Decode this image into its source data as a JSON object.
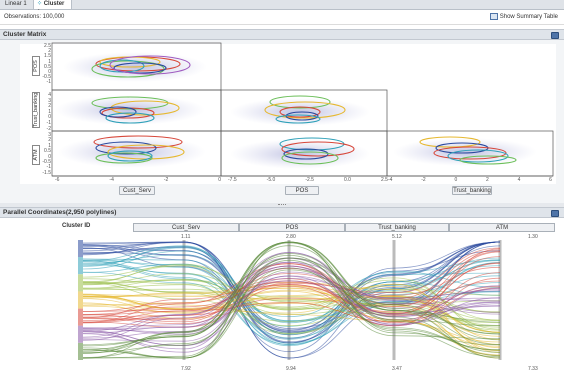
{
  "tabs": [
    {
      "label": "Linear 1",
      "icon": "chart-icon"
    },
    {
      "label": "Cluster 1",
      "icon": "cluster-icon"
    }
  ],
  "observations_text": "Observations: 100,000",
  "summary_table_label": "Show Summary Table",
  "cluster_matrix": {
    "title": "Cluster Matrix",
    "row_vars": [
      "POS",
      "Trust_banking",
      "ATM"
    ],
    "col_vars": [
      "Cust_Serv",
      "POS",
      "Trust_banking"
    ],
    "y_ticks_pos": [
      "2.5",
      "2",
      "1.5",
      "1",
      "0.5",
      "0",
      "-0.5",
      "-1",
      "-1.5"
    ],
    "y_ticks_trust": [
      "4",
      "3",
      "2",
      "1",
      "0",
      "-1",
      "-2"
    ],
    "y_ticks_atm": [
      "3",
      "2",
      "1",
      "0.5",
      "0",
      "-0.5",
      "-1",
      "-1.5"
    ],
    "x_ticks_cust": [
      "-6",
      "-4",
      "-2",
      "0"
    ],
    "x_ticks_pos": [
      "-7.5",
      "-5.0",
      "-2.5",
      "0.0",
      "2.5"
    ],
    "x_ticks_trust": [
      "-4",
      "-2",
      "0",
      "2",
      "4",
      "6"
    ]
  },
  "parallel": {
    "title": "Parallel Coordinates(2,950 polylines)",
    "cluster_label": "Cluster ID",
    "axes": [
      {
        "name": "Cust_Serv",
        "max": "1.11",
        "min": "7.92"
      },
      {
        "name": "POS",
        "max": "2.80",
        "min": "9.94"
      },
      {
        "name": "Trust_banking",
        "max": "5.12",
        "min": "3.47"
      },
      {
        "name": "ATM",
        "max": "1.30",
        "min": "7.33"
      }
    ],
    "cluster_colors": [
      "#2b4a9e",
      "#2fa0b8",
      "#9bc04a",
      "#e6b830",
      "#d7473a",
      "#8a5aa8",
      "#5a8a3a"
    ]
  },
  "colors": {
    "ellipses": [
      "#2b4a9e",
      "#2fa0b8",
      "#6cbf5a",
      "#e6b830",
      "#d7473a",
      "#a05cc0"
    ],
    "panel_header": "#dfe4ea"
  }
}
